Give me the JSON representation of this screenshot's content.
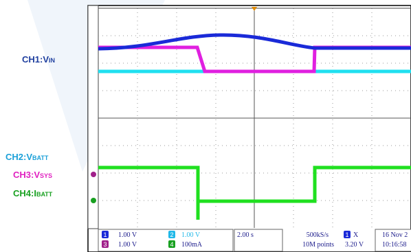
{
  "labels": [
    {
      "prefix": "CH1:V",
      "sub": "IN"
    },
    {
      "prefix": "CH2:V",
      "sub": "BATT"
    },
    {
      "prefix": "CH3:V",
      "sub": "SYS"
    },
    {
      "prefix": "CH4:I",
      "sub": "BATT"
    }
  ],
  "status": {
    "channels": [
      {
        "number": "1",
        "scale": "1.00 V"
      },
      {
        "number": "2",
        "scale": "1.00 V"
      },
      {
        "number": "3",
        "scale": "1.00 V"
      },
      {
        "number": "4",
        "scale": "100mA"
      }
    ],
    "timebase": "2.00 s",
    "sample_rate": "500kS/s",
    "record_length": "10M points",
    "trigger_source": "1",
    "trigger_label": "X",
    "trigger_level": "3.20 V",
    "date": "16 Nov 2",
    "time": "10:16:58"
  }
}
